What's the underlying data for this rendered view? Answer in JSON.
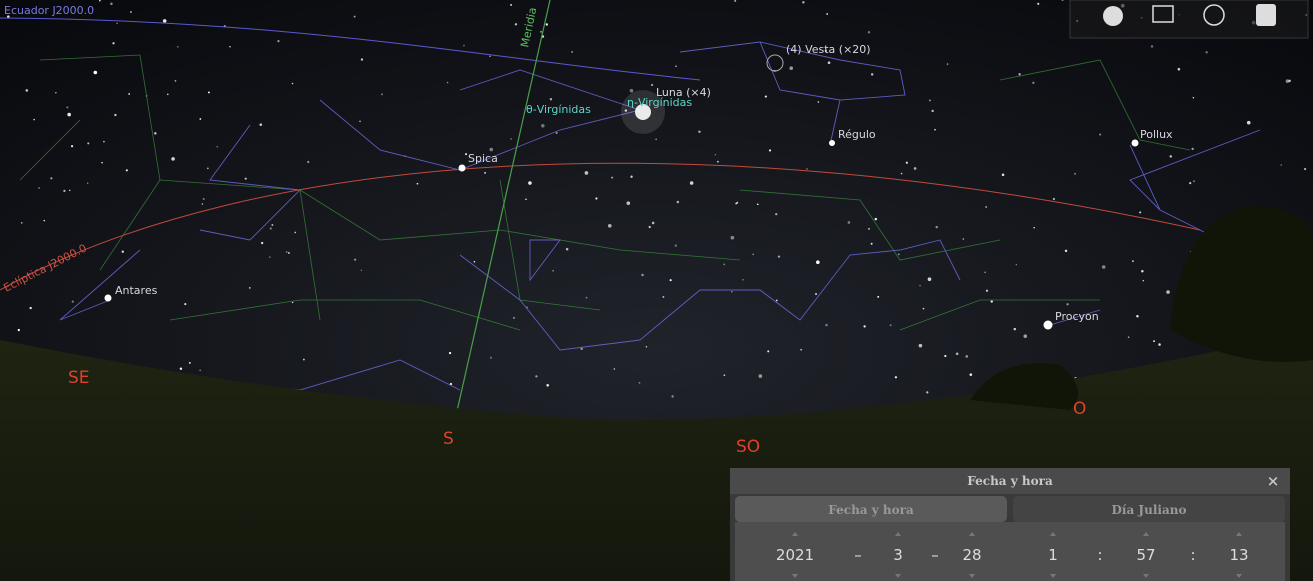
{
  "sky": {
    "lines": {
      "equator": "Ecuador J2000.0",
      "meridian": "Meridia",
      "ecliptic": "Eclíptica J2000.0"
    },
    "objects": [
      "(4) Vesta (×20)",
      "Luna (×4)",
      "θ-Virgínidas",
      "η-Virgínidas",
      "Régulo",
      "Spica",
      "Pollux",
      "Antares",
      "Procyon"
    ],
    "cardinals": [
      "SE",
      "S",
      "SO",
      "O"
    ]
  },
  "dialog": {
    "title": "Fecha y hora",
    "close": "×",
    "tabs": [
      "Fecha y hora",
      "Día Juliano"
    ],
    "date": [
      "2021",
      "–",
      "3",
      "–",
      "28"
    ],
    "time": [
      "1",
      ":",
      "57",
      ":",
      "13"
    ]
  }
}
